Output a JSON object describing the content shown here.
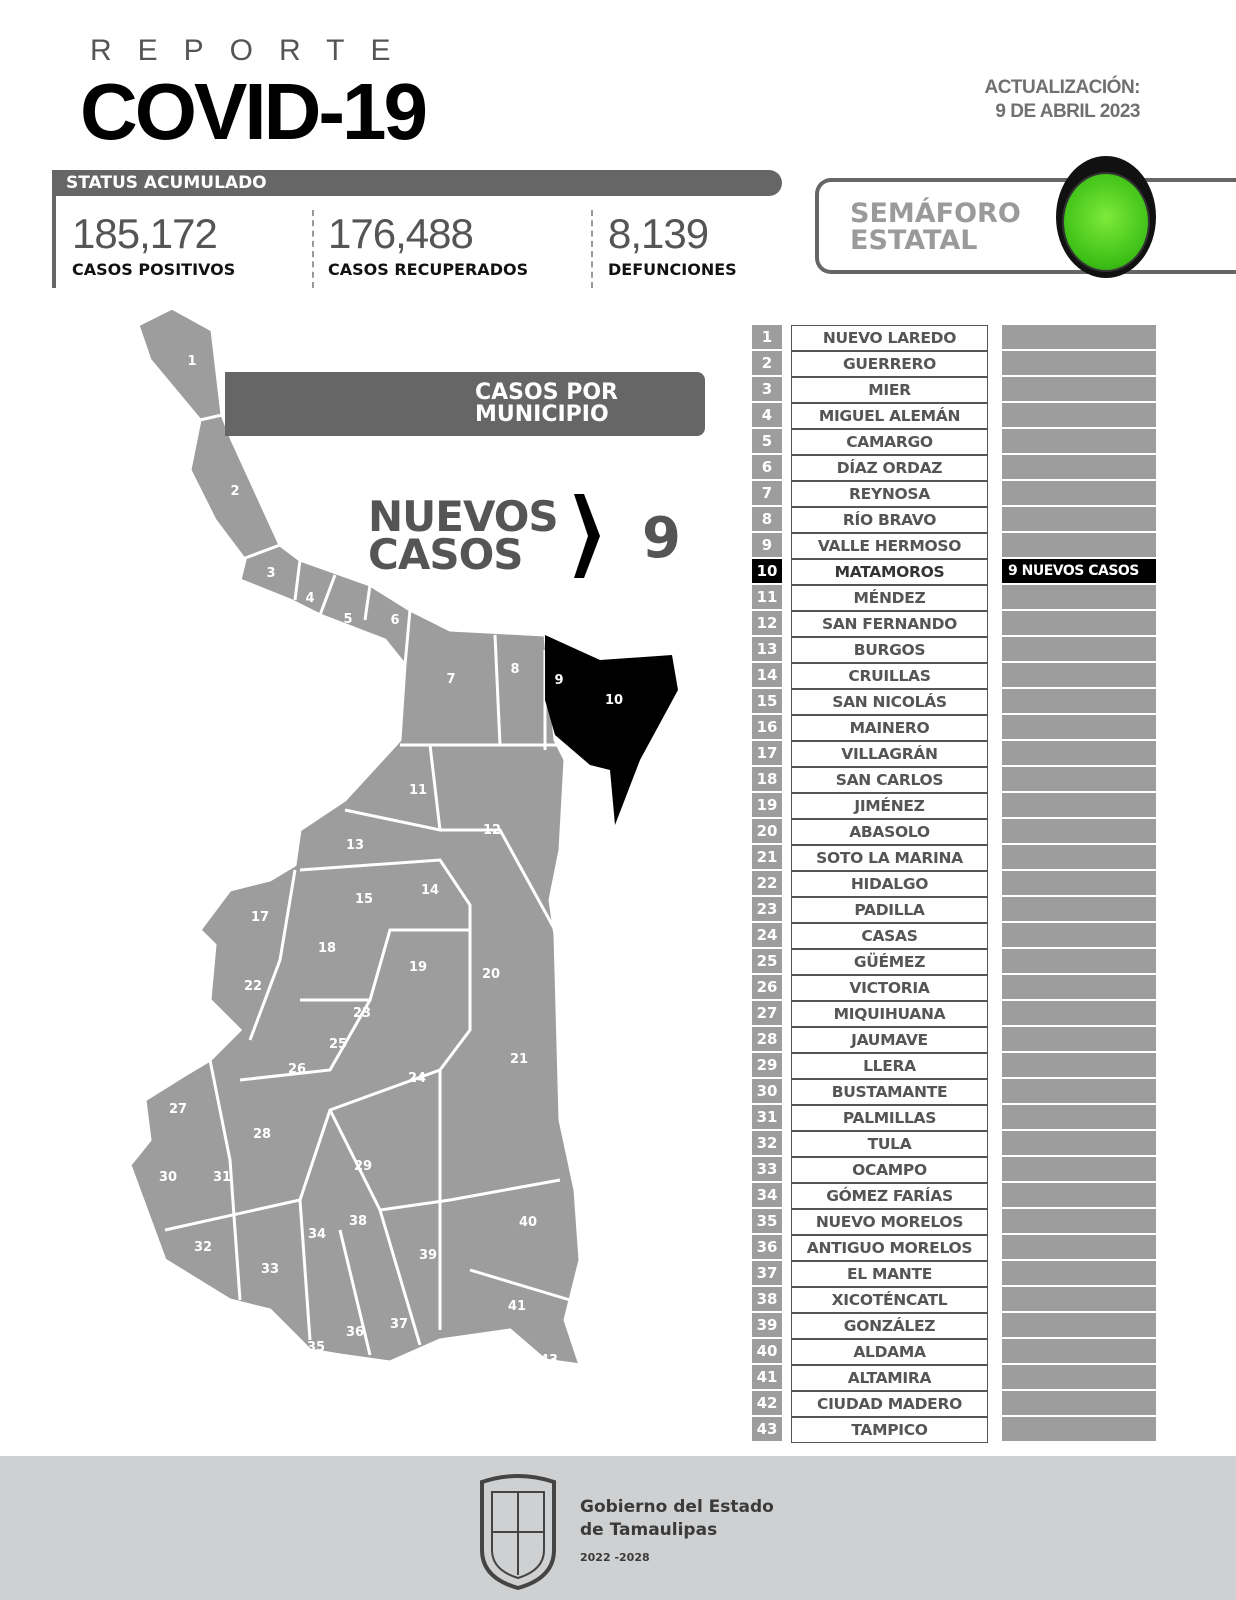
{
  "header": {
    "kicker": "REPORTE",
    "title": "COVID-19",
    "update_label": "ACTUALIZACIÓN:",
    "update_date": "9 DE ABRIL 2023"
  },
  "status": {
    "label": "STATUS ACUMULADO",
    "stats": [
      {
        "value": "185,172",
        "label": "CASOS POSITIVOS"
      },
      {
        "value": "176,488",
        "label": "CASOS RECUPERADOS"
      },
      {
        "value": "8,139",
        "label": "DEFUNCIONES"
      }
    ]
  },
  "semaforo": {
    "line1": "SEMÁFORO",
    "line2": "ESTATAL",
    "color": "#4cd11e"
  },
  "map": {
    "banner_line1": "CASOS POR",
    "banner_line2": "MUNICIPIO",
    "nuevos_line1": "NUEVOS",
    "nuevos_line2": "CASOS",
    "nuevos_count": "9",
    "highlight_color": "#000000",
    "base_color": "#9d9d9d"
  },
  "municipios": [
    {
      "num": "1",
      "name": "NUEVO LAREDO",
      "note": ""
    },
    {
      "num": "2",
      "name": "GUERRERO",
      "note": ""
    },
    {
      "num": "3",
      "name": "MIER",
      "note": ""
    },
    {
      "num": "4",
      "name": "MIGUEL ALEMÁN",
      "note": ""
    },
    {
      "num": "5",
      "name": "CAMARGO",
      "note": ""
    },
    {
      "num": "6",
      "name": "DÍAZ ORDAZ",
      "note": ""
    },
    {
      "num": "7",
      "name": "REYNOSA",
      "note": ""
    },
    {
      "num": "8",
      "name": "RÍO BRAVO",
      "note": ""
    },
    {
      "num": "9",
      "name": "VALLE HERMOSO",
      "note": ""
    },
    {
      "num": "10",
      "name": "MATAMOROS",
      "note": "9 NUEVOS CASOS"
    },
    {
      "num": "11",
      "name": "MÉNDEZ",
      "note": ""
    },
    {
      "num": "12",
      "name": "SAN FERNANDO",
      "note": ""
    },
    {
      "num": "13",
      "name": "BURGOS",
      "note": ""
    },
    {
      "num": "14",
      "name": "CRUILLAS",
      "note": ""
    },
    {
      "num": "15",
      "name": "SAN NICOLÁS",
      "note": ""
    },
    {
      "num": "16",
      "name": "MAINERO",
      "note": ""
    },
    {
      "num": "17",
      "name": "VILLAGRÁN",
      "note": ""
    },
    {
      "num": "18",
      "name": "SAN CARLOS",
      "note": ""
    },
    {
      "num": "19",
      "name": "JIMÉNEZ",
      "note": ""
    },
    {
      "num": "20",
      "name": "ABASOLO",
      "note": ""
    },
    {
      "num": "21",
      "name": "SOTO LA MARINA",
      "note": ""
    },
    {
      "num": "22",
      "name": "HIDALGO",
      "note": ""
    },
    {
      "num": "23",
      "name": "PADILLA",
      "note": ""
    },
    {
      "num": "24",
      "name": "CASAS",
      "note": ""
    },
    {
      "num": "25",
      "name": "GÜÉMEZ",
      "note": ""
    },
    {
      "num": "26",
      "name": "VICTORIA",
      "note": ""
    },
    {
      "num": "27",
      "name": "MIQUIHUANA",
      "note": ""
    },
    {
      "num": "28",
      "name": "JAUMAVE",
      "note": ""
    },
    {
      "num": "29",
      "name": "LLERA",
      "note": ""
    },
    {
      "num": "30",
      "name": "BUSTAMANTE",
      "note": ""
    },
    {
      "num": "31",
      "name": "PALMILLAS",
      "note": ""
    },
    {
      "num": "32",
      "name": "TULA",
      "note": ""
    },
    {
      "num": "33",
      "name": "OCAMPO",
      "note": ""
    },
    {
      "num": "34",
      "name": "GÓMEZ FARÍAS",
      "note": ""
    },
    {
      "num": "35",
      "name": "NUEVO MORELOS",
      "note": ""
    },
    {
      "num": "36",
      "name": "ANTIGUO MORELOS",
      "note": ""
    },
    {
      "num": "37",
      "name": "EL MANTE",
      "note": ""
    },
    {
      "num": "38",
      "name": "XICOTÉNCATL",
      "note": ""
    },
    {
      "num": "39",
      "name": "GONZÁLEZ",
      "note": ""
    },
    {
      "num": "40",
      "name": "ALDAMA",
      "note": ""
    },
    {
      "num": "41",
      "name": "ALTAMIRA",
      "note": ""
    },
    {
      "num": "42",
      "name": "CIUDAD MADERO",
      "note": ""
    },
    {
      "num": "43",
      "name": "TAMPICO",
      "note": ""
    }
  ],
  "footer": {
    "line1": "Gobierno del Estado",
    "line2": "de Tamaulipas",
    "years": "2022 -2028"
  }
}
